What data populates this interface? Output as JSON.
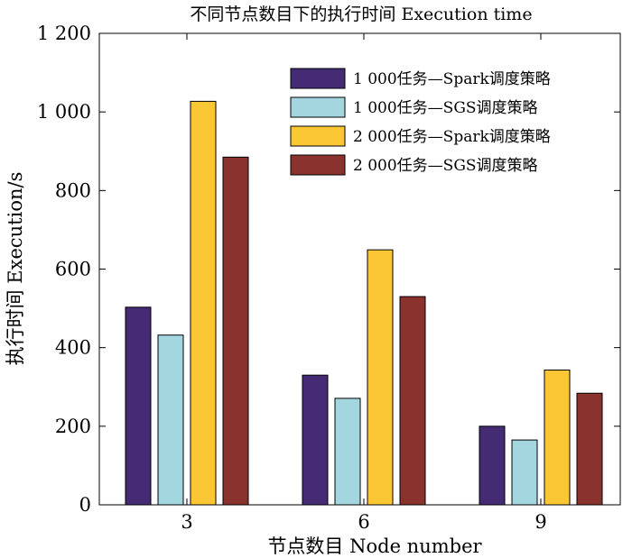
{
  "chart_data": {
    "type": "bar",
    "title": "不同节点数目下的执行时间 Execution time",
    "xlabel": "节点数目 Node number",
    "ylabel": "执行时间 Execution/s",
    "categories": [
      "3",
      "6",
      "9"
    ],
    "ylim": [
      0,
      1200
    ],
    "yticks": [
      0,
      200,
      400,
      600,
      800,
      1000,
      1200
    ],
    "ytick_labels": [
      "0",
      "200",
      "400",
      "600",
      "800",
      "1 000",
      "1 200"
    ],
    "grid": false,
    "legend_position": "top-right",
    "series": [
      {
        "name": "1 000任务—Spark调度策略",
        "color": "#452a74",
        "values": [
          503,
          330,
          200
        ]
      },
      {
        "name": "1 000任务—SGS调度策略",
        "color": "#a3d6df",
        "values": [
          432,
          271,
          165
        ]
      },
      {
        "name": "2 000任务—Spark调度策略",
        "color": "#fcc735",
        "values": [
          1027,
          649,
          343
        ]
      },
      {
        "name": "2 000任务—SGS调度策略",
        "color": "#8a322e",
        "values": [
          885,
          530,
          284
        ]
      }
    ]
  }
}
